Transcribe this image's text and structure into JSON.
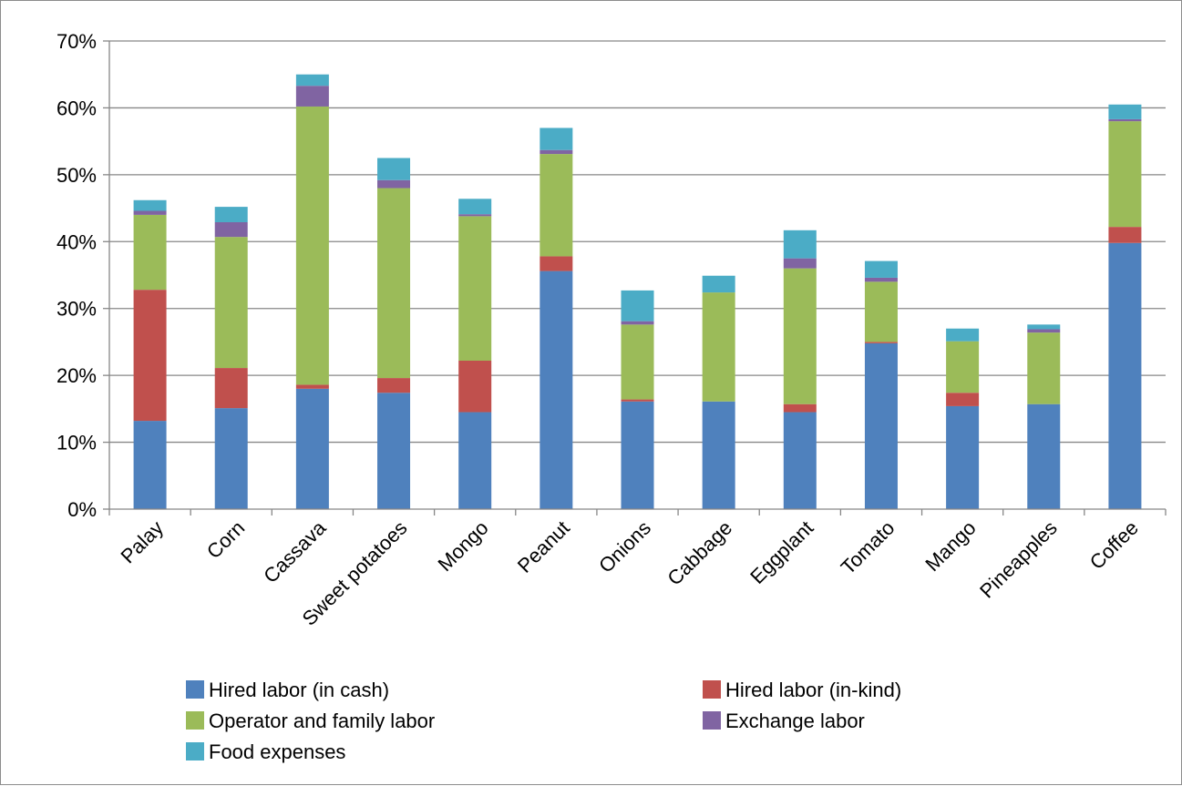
{
  "chart_data": {
    "type": "bar",
    "stacked": true,
    "categories": [
      "Palay",
      "Corn",
      "Cassava",
      "Sweet potatoes",
      "Mongo",
      "Peanut",
      "Onions",
      "Cabbage",
      "Eggplant",
      "Tomato",
      "Mango",
      "Pineapples",
      "Coffee"
    ],
    "series": [
      {
        "name": "Hired labor (in cash)",
        "color": "#4f81bd",
        "values": [
          13.2,
          15.1,
          18.0,
          17.4,
          14.5,
          35.6,
          16.1,
          16.1,
          14.5,
          24.8,
          15.4,
          15.7,
          39.8
        ]
      },
      {
        "name": "Hired labor (in-kind)",
        "color": "#c0504d",
        "values": [
          19.6,
          6.0,
          0.6,
          2.2,
          7.7,
          2.2,
          0.3,
          0.0,
          1.2,
          0.2,
          2.0,
          0.0,
          2.4
        ]
      },
      {
        "name": "Operator and family labor",
        "color": "#9bbb59",
        "values": [
          11.2,
          19.6,
          41.6,
          28.4,
          21.6,
          15.3,
          11.2,
          16.3,
          20.3,
          9.0,
          7.7,
          10.7,
          15.8
        ]
      },
      {
        "name": "Exchange labor",
        "color": "#8064a2",
        "values": [
          0.6,
          2.2,
          3.1,
          1.2,
          0.3,
          0.6,
          0.5,
          0.0,
          1.5,
          0.6,
          0.0,
          0.5,
          0.3
        ]
      },
      {
        "name": "Food expenses",
        "color": "#4bacc6",
        "values": [
          1.6,
          2.3,
          1.7,
          3.3,
          2.3,
          3.3,
          4.6,
          2.5,
          4.2,
          2.5,
          1.9,
          0.7,
          2.2
        ]
      }
    ],
    "y_ticks": [
      "0%",
      "10%",
      "20%",
      "30%",
      "40%",
      "50%",
      "60%",
      "70%"
    ],
    "ylim": [
      0,
      70
    ],
    "grid": true,
    "legend_position": "bottom"
  }
}
